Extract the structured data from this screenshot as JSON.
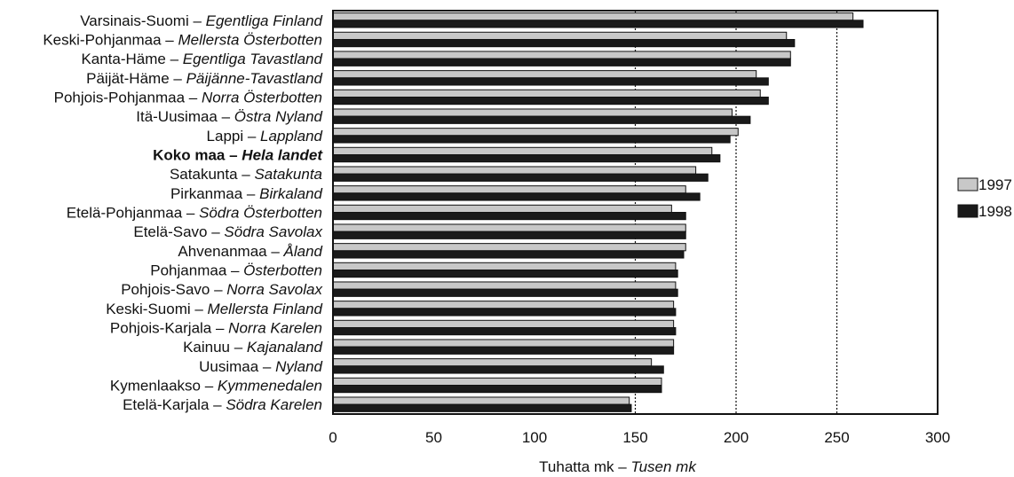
{
  "chart_data": {
    "type": "bar",
    "orientation": "horizontal",
    "categories": [
      {
        "fi": "Varsinais-Suomi",
        "sv": "Egentliga Finland",
        "bold": false
      },
      {
        "fi": "Keski-Pohjanmaa",
        "sv": "Mellersta Österbotten",
        "bold": false
      },
      {
        "fi": "Kanta-Häme",
        "sv": "Egentliga Tavastland",
        "bold": false
      },
      {
        "fi": "Päijät-Häme",
        "sv": "Päijänne-Tavastland",
        "bold": false
      },
      {
        "fi": "Pohjois-Pohjanmaa",
        "sv": "Norra Österbotten",
        "bold": false
      },
      {
        "fi": "Itä-Uusimaa",
        "sv": "Östra Nyland",
        "bold": false
      },
      {
        "fi": "Lappi",
        "sv": "Lappland",
        "bold": false
      },
      {
        "fi": "Koko maa",
        "sv": "Hela landet",
        "bold": true
      },
      {
        "fi": "Satakunta",
        "sv": "Satakunta",
        "bold": false
      },
      {
        "fi": "Pirkanmaa",
        "sv": "Birkaland",
        "bold": false
      },
      {
        "fi": "Etelä-Pohjanmaa",
        "sv": "Södra Österbotten",
        "bold": false
      },
      {
        "fi": "Etelä-Savo",
        "sv": "Södra Savolax",
        "bold": false
      },
      {
        "fi": "Ahvenanmaa",
        "sv": "Åland",
        "bold": false
      },
      {
        "fi": "Pohjanmaa",
        "sv": "Österbotten",
        "bold": false
      },
      {
        "fi": "Pohjois-Savo",
        "sv": "Norra Savolax",
        "bold": false
      },
      {
        "fi": "Keski-Suomi",
        "sv": "Mellersta Finland",
        "bold": false
      },
      {
        "fi": "Pohjois-Karjala",
        "sv": "Norra Karelen",
        "bold": false
      },
      {
        "fi": "Kainuu",
        "sv": "Kajanaland",
        "bold": false
      },
      {
        "fi": "Uusimaa",
        "sv": "Nyland",
        "bold": false
      },
      {
        "fi": "Kymenlaakso",
        "sv": "Kymmenedalen",
        "bold": false
      },
      {
        "fi": "Etelä-Karjala",
        "sv": "Södra Karelen",
        "bold": false
      }
    ],
    "separator": " – ",
    "series": [
      {
        "name": "1997",
        "color": "#c8c8c8",
        "values": [
          258,
          225,
          227,
          210,
          212,
          198,
          201,
          188,
          180,
          175,
          168,
          175,
          175,
          170,
          170,
          169,
          169,
          169,
          158,
          163,
          147
        ]
      },
      {
        "name": "1998",
        "color": "#1a1a1a",
        "values": [
          263,
          229,
          227,
          216,
          216,
          207,
          197,
          192,
          186,
          182,
          175,
          175,
          174,
          171,
          171,
          170,
          170,
          169,
          164,
          163,
          148
        ]
      }
    ],
    "xlim": [
      0,
      300
    ],
    "xticks": [
      "0",
      "50",
      "100",
      "150",
      "200",
      "250",
      "300"
    ],
    "gridlines": [
      150,
      200,
      250
    ],
    "xlabel": {
      "fi": "Tuhatta mk",
      "sv": "Tusen mk",
      "separator": " – "
    },
    "legend_position": "right"
  }
}
